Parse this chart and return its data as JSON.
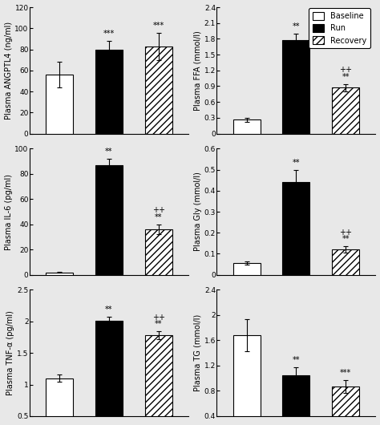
{
  "subplots": [
    {
      "ylabel": "Plasma ANGPTL4 (ng/ml)",
      "ylim": [
        0,
        120
      ],
      "yticks": [
        0,
        20,
        40,
        60,
        80,
        100,
        120
      ],
      "bars": [
        {
          "label": "Baseline",
          "value": 56,
          "error": 12,
          "color": "white",
          "hatch": null,
          "sig": ""
        },
        {
          "label": "Run",
          "value": 80,
          "error": 8,
          "color": "black",
          "hatch": null,
          "sig": "***"
        },
        {
          "label": "Recovery",
          "value": 83,
          "error": 13,
          "color": "white",
          "hatch": "////",
          "sig": "***"
        }
      ]
    },
    {
      "ylabel": "Plasma FFA (mmol/l)",
      "ylim": [
        0,
        2.4
      ],
      "yticks": [
        0,
        0.3,
        0.6,
        0.9,
        1.2,
        1.5,
        1.8,
        2.1,
        2.4
      ],
      "bars": [
        {
          "label": "Baseline",
          "value": 0.26,
          "error": 0.04,
          "color": "white",
          "hatch": null,
          "sig": ""
        },
        {
          "label": "Run",
          "value": 1.78,
          "error": 0.12,
          "color": "black",
          "hatch": null,
          "sig": "**"
        },
        {
          "label": "Recovery",
          "value": 0.87,
          "error": 0.07,
          "color": "white",
          "hatch": "////",
          "sig2": "**",
          "sig3": "++"
        }
      ]
    },
    {
      "ylabel": "Plasma IL-6 (pg/ml)",
      "ylim": [
        0,
        100
      ],
      "yticks": [
        0,
        20,
        40,
        60,
        80,
        100
      ],
      "bars": [
        {
          "label": "Baseline",
          "value": 2,
          "error": 0.5,
          "color": "white",
          "hatch": null,
          "sig": ""
        },
        {
          "label": "Run",
          "value": 87,
          "error": 5,
          "color": "black",
          "hatch": null,
          "sig": "**"
        },
        {
          "label": "Recovery",
          "value": 36,
          "error": 4,
          "color": "white",
          "hatch": "////",
          "sig2": "**",
          "sig3": "++"
        }
      ]
    },
    {
      "ylabel": "Plasma Gly (mmol/l)",
      "ylim": [
        0,
        0.6
      ],
      "yticks": [
        0,
        0.1,
        0.2,
        0.3,
        0.4,
        0.5,
        0.6
      ],
      "bars": [
        {
          "label": "Baseline",
          "value": 0.055,
          "error": 0.007,
          "color": "white",
          "hatch": null,
          "sig": ""
        },
        {
          "label": "Run",
          "value": 0.44,
          "error": 0.06,
          "color": "black",
          "hatch": null,
          "sig": "**"
        },
        {
          "label": "Recovery",
          "value": 0.12,
          "error": 0.015,
          "color": "white",
          "hatch": "////",
          "sig2": "**",
          "sig3": "++"
        }
      ]
    },
    {
      "ylabel": "Plasma TNF-α (pg/ml)",
      "ylim": [
        0.5,
        2.5
      ],
      "yticks": [
        0.5,
        1.0,
        1.5,
        2.0,
        2.5
      ],
      "bars": [
        {
          "label": "Baseline",
          "value": 1.1,
          "error": 0.06,
          "color": "white",
          "hatch": null,
          "sig": ""
        },
        {
          "label": "Run",
          "value": 2.01,
          "error": 0.07,
          "color": "black",
          "hatch": null,
          "sig": "**"
        },
        {
          "label": "Recovery",
          "value": 1.78,
          "error": 0.06,
          "color": "white",
          "hatch": "////",
          "sig2": "**",
          "sig3": "++"
        }
      ]
    },
    {
      "ylabel": "Plasma TG (mmol/l)",
      "ylim": [
        0.4,
        2.4
      ],
      "yticks": [
        0.4,
        0.8,
        1.2,
        1.6,
        2.0,
        2.4
      ],
      "bars": [
        {
          "label": "Baseline",
          "value": 1.68,
          "error": 0.25,
          "color": "white",
          "hatch": null,
          "sig": ""
        },
        {
          "label": "Run",
          "value": 1.05,
          "error": 0.13,
          "color": "black",
          "hatch": null,
          "sig": "**"
        },
        {
          "label": "Recovery",
          "value": 0.87,
          "error": 0.1,
          "color": "white",
          "hatch": "////",
          "sig": "***"
        }
      ]
    }
  ],
  "legend_labels": [
    "Baseline",
    "Run",
    "Recovery"
  ],
  "legend_colors": [
    "white",
    "black",
    "white"
  ],
  "legend_hatches": [
    null,
    null,
    "////"
  ],
  "bar_width": 0.55,
  "sig_fontsize": 7,
  "label_fontsize": 7,
  "tick_fontsize": 6.5,
  "edgecolor": "black",
  "background_color": "#e8e8e8"
}
